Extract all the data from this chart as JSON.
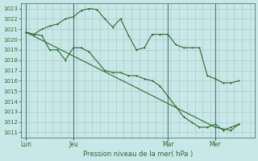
{
  "background_color": "#c8e8e8",
  "grid_color": "#b0c8c8",
  "line_color": "#2d6b2d",
  "marker_color": "#2d6b2d",
  "ylim": [
    1010.5,
    1023.5
  ],
  "yticks": [
    1011,
    1012,
    1013,
    1014,
    1015,
    1016,
    1017,
    1018,
    1019,
    1020,
    1021,
    1022,
    1023
  ],
  "xlabel": "Pression niveau de la mer( hPa )",
  "xtick_labels": [
    "Lun",
    "Jeu",
    "Mar",
    "Mer"
  ],
  "xtick_positions": [
    0,
    3,
    9,
    12
  ],
  "xlim": [
    -0.3,
    14.5
  ],
  "vline_positions": [
    0,
    3,
    9,
    12
  ],
  "line1_x": [
    0,
    0.5,
    1,
    1.5,
    2,
    2.5,
    3,
    3.5,
    4,
    4.5,
    5,
    5.5,
    6,
    6.5,
    7,
    7.5,
    8,
    8.5,
    9,
    9.5,
    10,
    10.5,
    11,
    11.5,
    12,
    12.5,
    13,
    13.5
  ],
  "line1_y": [
    1020.7,
    1020.5,
    1021.0,
    1021.3,
    1021.5,
    1022.0,
    1022.2,
    1022.8,
    1023.0,
    1022.9,
    1022.0,
    1021.2,
    1022.0,
    1020.4,
    1019.0,
    1019.2,
    1020.5,
    1020.5,
    1020.5,
    1019.5,
    1019.2,
    1019.2,
    1019.2,
    1016.5,
    1016.2,
    1015.8,
    1015.8,
    1016.0
  ],
  "line2_x": [
    0,
    0.5,
    1,
    1.5,
    2,
    2.5,
    3,
    3.5,
    4,
    5,
    5.5,
    6,
    6.5,
    7,
    7.5,
    8,
    8.5,
    9,
    9.5,
    10,
    10.5,
    11,
    11.5,
    12,
    12.5,
    13,
    13.5
  ],
  "line2_y": [
    1020.7,
    1020.5,
    1020.4,
    1019.0,
    1019.0,
    1018.0,
    1019.2,
    1019.2,
    1018.8,
    1017.0,
    1016.8,
    1016.8,
    1016.5,
    1016.5,
    1016.2,
    1016.0,
    1015.5,
    1014.5,
    1013.5,
    1012.5,
    1012.0,
    1011.5,
    1011.5,
    1011.8,
    1011.2,
    1011.5,
    1011.8
  ],
  "line3_x": [
    0,
    12,
    13,
    13.5
  ],
  "line3_y": [
    1020.7,
    1011.5,
    1011.2,
    1011.8
  ]
}
